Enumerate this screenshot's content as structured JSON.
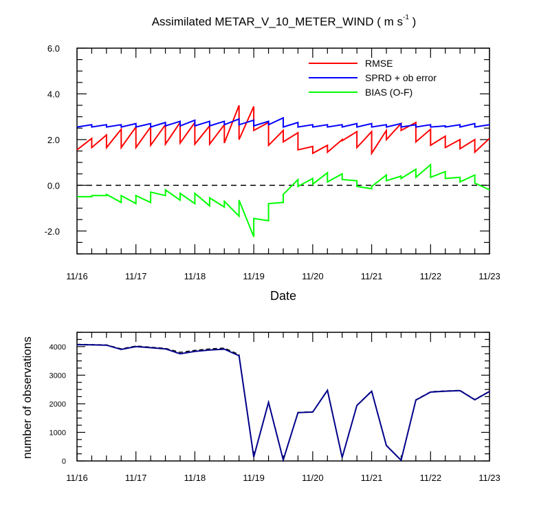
{
  "chart_data": [
    {
      "type": "line",
      "title_prefix": "Assimilated METAR_V_10_METER_WIND ( m s",
      "title_sup": "-1",
      "title_suffix": " )",
      "xlabel": "Date",
      "ylabel": "",
      "ylim": [
        -3,
        6
      ],
      "xlim": [
        0,
        7
      ],
      "x_tick_labels": [
        "11/16",
        "11/17",
        "11/18",
        "11/19",
        "11/20",
        "11/21",
        "11/22",
        "11/23"
      ],
      "y_tick_labels": [
        "-2.0",
        "0.0",
        "2.0",
        "4.0",
        "6.0"
      ],
      "y_ticks": [
        -2,
        0,
        2,
        4,
        6
      ],
      "reference_line": 0,
      "legend_position": "top-right",
      "series": [
        {
          "name": "RMSE",
          "color": "#ff0000",
          "points": [
            [
              0.0,
              1.55
            ],
            [
              0.25,
              2.05
            ],
            [
              0.25,
              1.65
            ],
            [
              0.5,
              2.2
            ],
            [
              0.5,
              1.65
            ],
            [
              0.75,
              2.45
            ],
            [
              0.75,
              1.65
            ],
            [
              1.0,
              2.55
            ],
            [
              1.0,
              1.65
            ],
            [
              1.25,
              2.55
            ],
            [
              1.25,
              1.75
            ],
            [
              1.5,
              2.65
            ],
            [
              1.5,
              1.8
            ],
            [
              1.75,
              2.75
            ],
            [
              1.75,
              1.85
            ],
            [
              2.0,
              2.75
            ],
            [
              2.0,
              1.8
            ],
            [
              2.25,
              2.6
            ],
            [
              2.25,
              1.8
            ],
            [
              2.5,
              2.65
            ],
            [
              2.5,
              1.85
            ],
            [
              2.75,
              3.5
            ],
            [
              2.75,
              2.0
            ],
            [
              3.0,
              3.45
            ],
            [
              3.0,
              2.4
            ],
            [
              3.25,
              2.75
            ],
            [
              3.25,
              1.75
            ],
            [
              3.5,
              2.4
            ],
            [
              3.5,
              1.9
            ],
            [
              3.75,
              2.3
            ],
            [
              3.75,
              1.55
            ],
            [
              4.0,
              1.7
            ],
            [
              4.0,
              1.4
            ],
            [
              4.25,
              1.75
            ],
            [
              4.25,
              1.45
            ],
            [
              4.5,
              2.0
            ],
            [
              4.5,
              1.95
            ],
            [
              4.75,
              2.35
            ],
            [
              4.75,
              1.65
            ],
            [
              5.0,
              2.35
            ],
            [
              5.0,
              1.4
            ],
            [
              5.25,
              2.4
            ],
            [
              5.25,
              2.0
            ],
            [
              5.5,
              2.7
            ],
            [
              5.5,
              2.4
            ],
            [
              5.75,
              2.75
            ],
            [
              5.75,
              1.9
            ],
            [
              6.0,
              2.45
            ],
            [
              6.0,
              1.75
            ],
            [
              6.25,
              2.15
            ],
            [
              6.25,
              1.65
            ],
            [
              6.5,
              2.0
            ],
            [
              6.5,
              1.6
            ],
            [
              6.75,
              2.0
            ],
            [
              6.75,
              1.45
            ],
            [
              7.0,
              2.05
            ]
          ]
        },
        {
          "name": "SPRD + ob error",
          "color": "#0000ff",
          "points": [
            [
              0.0,
              2.55
            ],
            [
              0.25,
              2.65
            ],
            [
              0.25,
              2.55
            ],
            [
              0.5,
              2.65
            ],
            [
              0.5,
              2.55
            ],
            [
              0.75,
              2.65
            ],
            [
              0.75,
              2.55
            ],
            [
              1.0,
              2.7
            ],
            [
              1.0,
              2.55
            ],
            [
              1.25,
              2.7
            ],
            [
              1.25,
              2.55
            ],
            [
              1.5,
              2.75
            ],
            [
              1.5,
              2.6
            ],
            [
              1.75,
              2.8
            ],
            [
              1.75,
              2.6
            ],
            [
              2.0,
              2.85
            ],
            [
              2.0,
              2.6
            ],
            [
              2.25,
              2.8
            ],
            [
              2.25,
              2.6
            ],
            [
              2.5,
              2.8
            ],
            [
              2.5,
              2.65
            ],
            [
              2.75,
              2.9
            ],
            [
              2.75,
              2.65
            ],
            [
              3.0,
              2.85
            ],
            [
              3.0,
              2.6
            ],
            [
              3.25,
              2.8
            ],
            [
              3.25,
              2.65
            ],
            [
              3.5,
              2.95
            ],
            [
              3.5,
              2.55
            ],
            [
              3.75,
              2.75
            ],
            [
              3.75,
              2.55
            ],
            [
              4.0,
              2.65
            ],
            [
              4.0,
              2.55
            ],
            [
              4.25,
              2.65
            ],
            [
              4.25,
              2.55
            ],
            [
              4.5,
              2.65
            ],
            [
              4.5,
              2.55
            ],
            [
              4.75,
              2.7
            ],
            [
              4.75,
              2.55
            ],
            [
              5.0,
              2.7
            ],
            [
              5.0,
              2.55
            ],
            [
              5.25,
              2.65
            ],
            [
              5.25,
              2.55
            ],
            [
              5.5,
              2.7
            ],
            [
              5.5,
              2.55
            ],
            [
              5.75,
              2.65
            ],
            [
              5.75,
              2.55
            ],
            [
              6.0,
              2.65
            ],
            [
              6.0,
              2.55
            ],
            [
              6.25,
              2.6
            ],
            [
              6.25,
              2.55
            ],
            [
              6.5,
              2.65
            ],
            [
              6.5,
              2.55
            ],
            [
              6.75,
              2.7
            ],
            [
              6.75,
              2.55
            ],
            [
              7.0,
              2.65
            ]
          ]
        },
        {
          "name": "BIAS (O-F)",
          "color": "#00ff00",
          "points": [
            [
              0.0,
              -0.5
            ],
            [
              0.25,
              -0.5
            ],
            [
              0.25,
              -0.45
            ],
            [
              0.5,
              -0.45
            ],
            [
              0.5,
              -0.4
            ],
            [
              0.75,
              -0.75
            ],
            [
              0.75,
              -0.45
            ],
            [
              1.0,
              -0.8
            ],
            [
              1.0,
              -0.45
            ],
            [
              1.25,
              -0.75
            ],
            [
              1.25,
              -0.3
            ],
            [
              1.5,
              -0.45
            ],
            [
              1.5,
              -0.2
            ],
            [
              1.75,
              -0.65
            ],
            [
              1.75,
              -0.35
            ],
            [
              2.0,
              -0.8
            ],
            [
              2.0,
              -0.35
            ],
            [
              2.25,
              -0.9
            ],
            [
              2.25,
              -0.55
            ],
            [
              2.5,
              -0.95
            ],
            [
              2.5,
              -0.7
            ],
            [
              2.75,
              -1.35
            ],
            [
              2.75,
              -0.65
            ],
            [
              3.0,
              -2.25
            ],
            [
              3.0,
              -1.45
            ],
            [
              3.25,
              -1.55
            ],
            [
              3.25,
              -0.8
            ],
            [
              3.5,
              -0.75
            ],
            [
              3.5,
              -0.4
            ],
            [
              3.75,
              0.25
            ],
            [
              3.75,
              -0.05
            ],
            [
              4.0,
              0.3
            ],
            [
              4.0,
              0.05
            ],
            [
              4.25,
              0.55
            ],
            [
              4.25,
              0.15
            ],
            [
              4.5,
              0.5
            ],
            [
              4.5,
              0.25
            ],
            [
              4.75,
              0.2
            ],
            [
              4.75,
              -0.05
            ],
            [
              5.0,
              -0.15
            ],
            [
              5.0,
              -0.05
            ],
            [
              5.25,
              0.45
            ],
            [
              5.25,
              0.2
            ],
            [
              5.5,
              0.4
            ],
            [
              5.5,
              0.3
            ],
            [
              5.75,
              0.7
            ],
            [
              5.75,
              0.35
            ],
            [
              6.0,
              0.9
            ],
            [
              6.0,
              0.35
            ],
            [
              6.25,
              0.6
            ],
            [
              6.25,
              0.3
            ],
            [
              6.5,
              0.35
            ],
            [
              6.5,
              0.15
            ],
            [
              6.75,
              0.45
            ],
            [
              6.75,
              0.1
            ],
            [
              7.0,
              -0.2
            ]
          ]
        }
      ]
    },
    {
      "type": "line",
      "xlabel": "",
      "ylabel": "number of observations",
      "ylim": [
        0,
        4500
      ],
      "xlim": [
        0,
        7
      ],
      "x_tick_labels": [
        "11/16",
        "11/17",
        "11/18",
        "11/19",
        "11/20",
        "11/21",
        "11/22",
        "11/23"
      ],
      "y_tick_labels": [
        "0",
        "1000",
        "2000",
        "3000",
        "4000"
      ],
      "y_ticks": [
        0,
        1000,
        2000,
        3000,
        4000
      ],
      "series": [
        {
          "style": "dashed",
          "color": "#000000",
          "x": [
            0,
            0.25,
            0.5,
            0.75,
            1.0,
            1.25,
            1.5,
            1.75,
            2.0,
            2.25,
            2.5,
            2.75,
            3.0,
            3.25,
            3.5,
            3.75,
            4.0,
            4.25,
            4.5,
            4.75,
            5.0,
            5.25,
            5.5,
            5.75,
            6.0,
            6.25,
            6.5,
            6.75,
            7.0
          ],
          "values": [
            4080,
            4070,
            4060,
            3920,
            4020,
            3980,
            3940,
            3800,
            3870,
            3920,
            3950,
            3720,
            150,
            2060,
            40,
            1700,
            1720,
            2480,
            130,
            1950,
            2450,
            550,
            30,
            2140,
            2420,
            2450,
            2470,
            2150,
            2440
          ]
        },
        {
          "style": "solid",
          "color": "#00008b",
          "x": [
            0,
            0.25,
            0.5,
            0.75,
            1.0,
            1.25,
            1.5,
            1.75,
            2.0,
            2.25,
            2.5,
            2.75,
            3.0,
            3.25,
            3.5,
            3.75,
            4.0,
            4.25,
            4.5,
            4.75,
            5.0,
            5.25,
            5.5,
            5.75,
            6.0,
            6.25,
            6.5,
            6.75,
            7.0
          ],
          "values": [
            4070,
            4060,
            4050,
            3900,
            4000,
            3960,
            3920,
            3750,
            3830,
            3880,
            3910,
            3680,
            140,
            2050,
            35,
            1690,
            1710,
            2470,
            120,
            1940,
            2440,
            540,
            25,
            2130,
            2410,
            2440,
            2460,
            2140,
            2430
          ]
        }
      ]
    }
  ]
}
